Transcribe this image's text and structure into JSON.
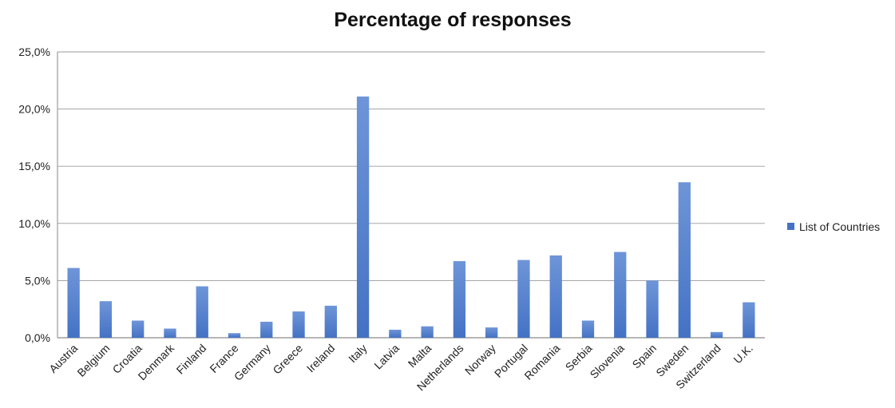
{
  "chart_data": {
    "type": "bar",
    "title": "Percentage of responses",
    "xlabel": "",
    "ylabel": "",
    "categories": [
      "Austria",
      "Belgium",
      "Croatia",
      "Denmark",
      "Finland",
      "France",
      "Germany",
      "Greece",
      "Ireland",
      "Italy",
      "Latvia",
      "Malta",
      "Netherlands",
      "Norway",
      "Portugal",
      "Romania",
      "Serbia",
      "Slovenia",
      "Spain",
      "Sweden",
      "Switzerland",
      "U.K."
    ],
    "series": [
      {
        "name": "List of Countries",
        "values": [
          6.1,
          3.2,
          1.5,
          0.8,
          4.5,
          0.4,
          1.4,
          2.3,
          2.8,
          21.1,
          0.7,
          1.0,
          6.7,
          0.9,
          6.8,
          7.2,
          1.5,
          7.5,
          5.0,
          13.6,
          0.5,
          3.1
        ]
      }
    ],
    "ylim": [
      0,
      25
    ],
    "yticks": [
      "0,0%",
      "5,0%",
      "10,0%",
      "15,0%",
      "20,0%",
      "25,0%"
    ],
    "grid": true,
    "legend": "right",
    "colors": {
      "bar": "#4472c4",
      "bar_light": "#6e95d8",
      "grid": "#9a9a9a",
      "axis": "#8a8a8a"
    }
  }
}
